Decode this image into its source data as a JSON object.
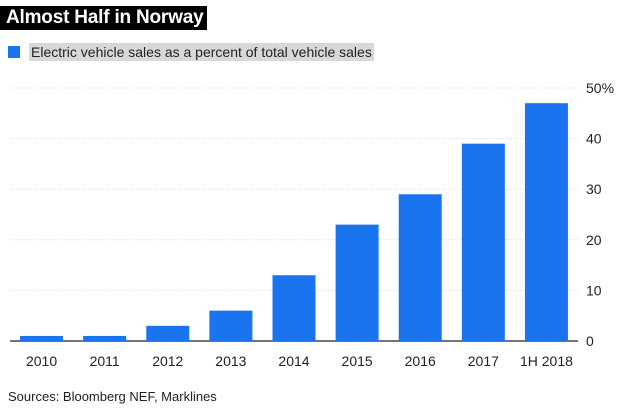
{
  "title": "Almost Half in Norway",
  "source": "Sources: Bloomberg NEF, Marklines",
  "colors": {
    "bar": "#1a74ef",
    "grid": "#d9d9d9",
    "axis": "#222222"
  },
  "chart_data": {
    "type": "bar",
    "title": "Almost Half in Norway",
    "legend": [
      "Electric vehicle sales as a percent of total vehicle sales"
    ],
    "categories": [
      "2010",
      "2011",
      "2012",
      "2013",
      "2014",
      "2015",
      "2016",
      "2017",
      "1H 2018"
    ],
    "series": [
      {
        "name": "Electric vehicle sales as a percent of total vehicle sales",
        "values": [
          1,
          1,
          3,
          6,
          13,
          23,
          29,
          39,
          47
        ]
      }
    ],
    "ylim": [
      0,
      50
    ],
    "yticks": [
      0,
      10,
      20,
      30,
      40,
      50
    ],
    "ytick_labels": [
      "0",
      "10",
      "20",
      "30",
      "40",
      "50%"
    ],
    "xlabel": "",
    "ylabel": "",
    "grid": true,
    "y_axis_side": "right"
  }
}
